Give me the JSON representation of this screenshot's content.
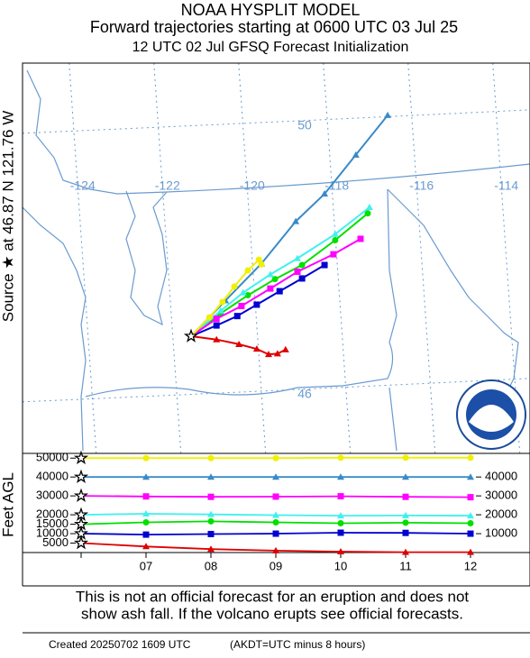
{
  "header": {
    "line1": "NOAA HYSPLIT MODEL",
    "line2": "Forward trajectories starting at 0600 UTC 03 Jul 25",
    "line3": "12 UTC 02 Jul    GFSQ  Forecast Initialization"
  },
  "chart_data": [
    {
      "type": "map",
      "source_label": "Source ★ at   46.87 N  121.76 W",
      "lat_labels": [
        50,
        46
      ],
      "lon_labels": [
        -124,
        -122,
        -120,
        -118,
        -116,
        -114
      ],
      "series": [
        {
          "color": "#e00000",
          "marker": "triangle",
          "lon": [
            -121.76,
            -121.16,
            -120.63,
            -120.21,
            -119.93,
            -119.72,
            -119.53
          ],
          "lat": [
            46.87,
            46.82,
            46.75,
            46.68,
            46.6,
            46.61,
            46.67
          ]
        },
        {
          "color": "#0000d0",
          "marker": "square",
          "lon": [
            -121.76,
            -121.16,
            -120.67,
            -120.21,
            -119.67,
            -119.14,
            -118.61
          ],
          "lat": [
            46.87,
            47.03,
            47.17,
            47.34,
            47.54,
            47.73,
            47.93
          ]
        },
        {
          "color": "#00e000",
          "marker": "circle",
          "lon": [
            -121.76,
            -121.06,
            -120.42,
            -119.78,
            -119.14,
            -118.36,
            -117.59
          ],
          "lat": [
            46.87,
            47.21,
            47.48,
            47.72,
            47.93,
            48.3,
            48.7
          ]
        },
        {
          "color": "#40f0f0",
          "marker": "triangle",
          "lon": [
            -121.76,
            -121.06,
            -120.53,
            -119.89,
            -119.25,
            -118.36,
            -117.55
          ],
          "lat": [
            46.87,
            47.25,
            47.52,
            47.79,
            48.03,
            48.39,
            48.79
          ]
        },
        {
          "color": "#ff00ff",
          "marker": "square",
          "lon": [
            -121.76,
            -121.16,
            -120.57,
            -119.89,
            -119.25,
            -118.4,
            -117.76
          ],
          "lat": [
            46.87,
            47.13,
            47.32,
            47.58,
            47.83,
            48.09,
            48.32
          ]
        },
        {
          "color": "#3a8ac8",
          "marker": "triangle",
          "lon": [
            -121.76,
            -120.95,
            -120.1,
            -119.29,
            -118.61,
            -117.87,
            -117.12
          ],
          "lat": [
            46.87,
            47.4,
            47.95,
            48.58,
            48.99,
            49.57,
            50.16
          ]
        },
        {
          "color": "#f0f000",
          "marker": "circle",
          "lon": [
            -121.76,
            -121.33,
            -121.02,
            -120.74,
            -120.42,
            -120.16,
            -120.1
          ],
          "lat": [
            46.87,
            47.15,
            47.38,
            47.61,
            47.85,
            48.01,
            47.94
          ]
        }
      ]
    },
    {
      "type": "line",
      "ylabel": "Feet AGL",
      "categories": [
        null,
        "07",
        "08",
        "09",
        "10",
        "11",
        "12"
      ],
      "ylim": [
        0,
        52500
      ],
      "start_heights": [
        50000,
        40000,
        30000,
        20000,
        15000,
        10000,
        5000
      ],
      "yticks": [
        40000,
        30000,
        20000,
        10000
      ],
      "series": [
        {
          "color": "#e00000",
          "marker": "triangle",
          "values": [
            5000,
            3200,
            1800,
            1000,
            500,
            200,
            200
          ]
        },
        {
          "color": "#0000d0",
          "marker": "square",
          "values": [
            10000,
            9500,
            9800,
            10000,
            10500,
            10400,
            10000
          ]
        },
        {
          "color": "#00e000",
          "marker": "circle",
          "values": [
            15000,
            16000,
            16500,
            16000,
            15500,
            15800,
            15500
          ]
        },
        {
          "color": "#40f0f0",
          "marker": "triangle",
          "values": [
            20000,
            20500,
            20200,
            19800,
            19500,
            19600,
            19500
          ]
        },
        {
          "color": "#ff00ff",
          "marker": "square",
          "values": [
            30000,
            29700,
            29500,
            29600,
            29800,
            29500,
            29300
          ]
        },
        {
          "color": "#3a8ac8",
          "marker": "triangle",
          "values": [
            40000,
            40000,
            40000,
            40000,
            40000,
            40000,
            40000
          ]
        },
        {
          "color": "#f0f000",
          "marker": "circle",
          "values": [
            50000,
            50000,
            50000,
            50000,
            50200,
            50200,
            50200
          ]
        }
      ]
    }
  ],
  "footer": {
    "notice_line1": "This is not an official forecast for an eruption and does not",
    "notice_line2": "show ash fall. If the volcano erupts see official forecasts.",
    "created": "Created 20250702 1609 UTC",
    "timezone": "(AKDT=UTC minus 8 hours)"
  }
}
